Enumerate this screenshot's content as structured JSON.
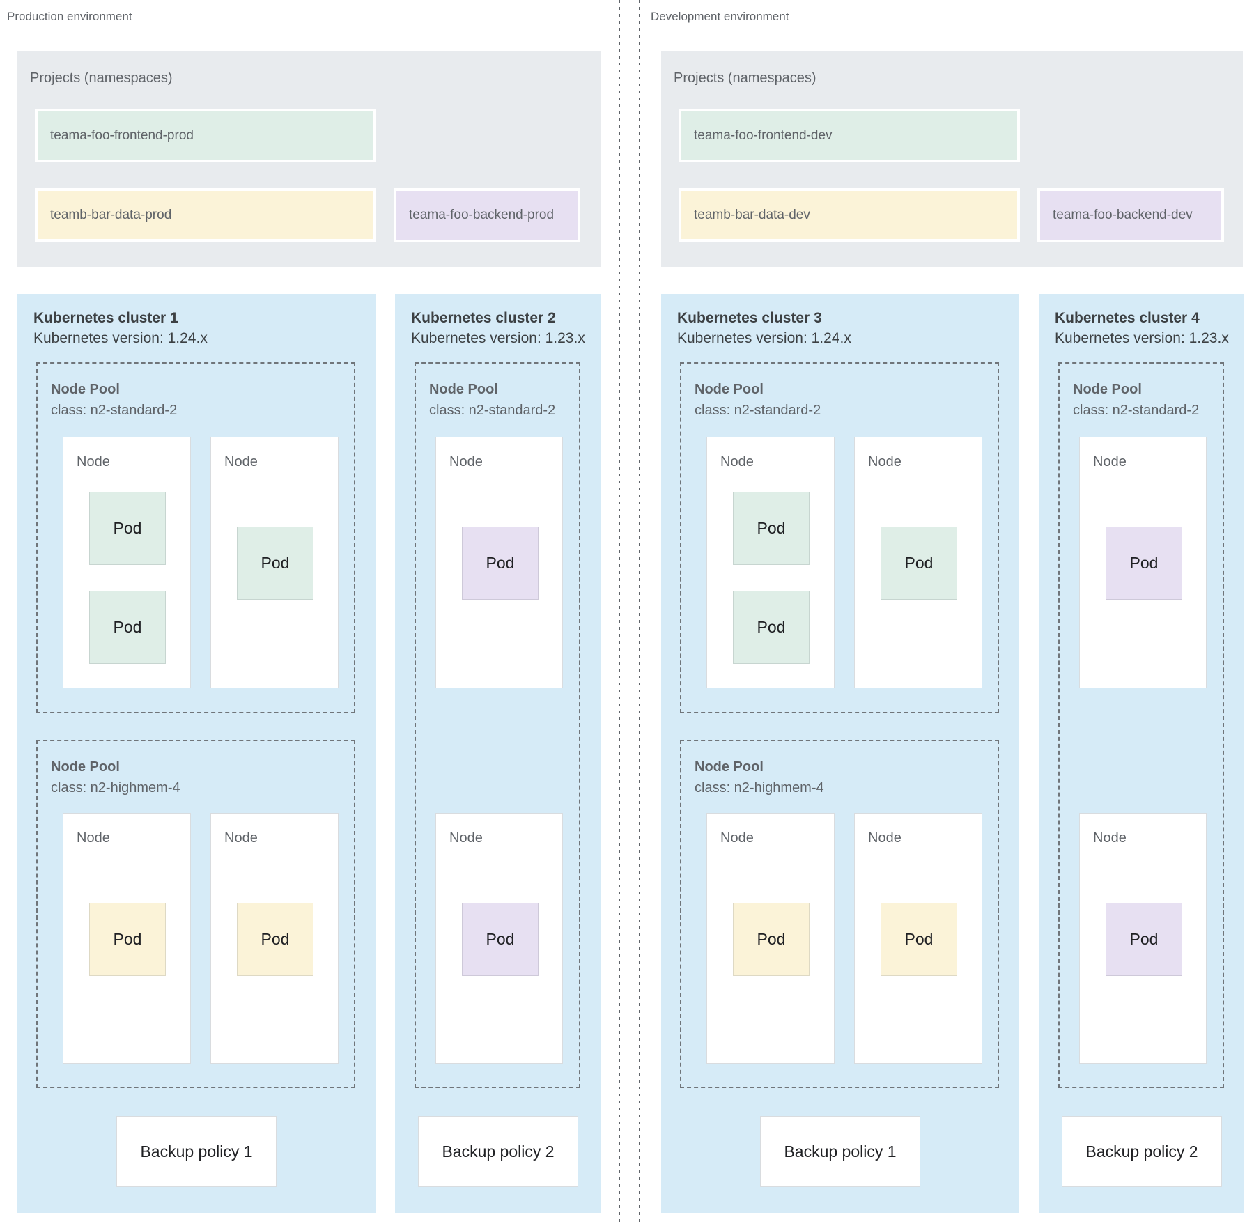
{
  "colors": {
    "page_bg": "#ffffff",
    "projects_panel_bg": "#e8ebee",
    "cluster_bg": "#d6ebf7",
    "namespace_green": "#dfeee7",
    "namespace_yellow": "#fbf3d8",
    "namespace_purple": "#e7e0f2",
    "dashed_border": "#70757a",
    "label_gray": "#5f6368",
    "title_dark": "#3c4043"
  },
  "environments": [
    {
      "label": "Production environment",
      "projects_panel": {
        "title": "Projects (namespaces)",
        "namespaces": [
          {
            "name": "teama-foo-frontend-prod",
            "color": "green"
          },
          {
            "name": "teamb-bar-data-prod",
            "color": "yellow"
          },
          {
            "name": "teama-foo-backend-prod",
            "color": "purple"
          }
        ]
      },
      "clusters": [
        {
          "title": "Kubernetes cluster 1",
          "version": "Kubernetes version: 1.24.x",
          "width": "wide",
          "node_pools": [
            {
              "label": "Node Pool",
              "class": "class: n2-standard-2",
              "nodes": [
                {
                  "label": "Node",
                  "pods": [
                    {
                      "label": "Pod",
                      "color": "green"
                    },
                    {
                      "label": "Pod",
                      "color": "green"
                    }
                  ]
                },
                {
                  "label": "Node",
                  "pods": [
                    {
                      "label": "Pod",
                      "color": "green"
                    }
                  ]
                }
              ]
            },
            {
              "label": "Node Pool",
              "class": "class: n2-highmem-4",
              "nodes": [
                {
                  "label": "Node",
                  "pods": [
                    {
                      "label": "Pod",
                      "color": "yellow"
                    }
                  ]
                },
                {
                  "label": "Node",
                  "pods": [
                    {
                      "label": "Pod",
                      "color": "yellow"
                    }
                  ]
                }
              ]
            }
          ],
          "backup_policy": "Backup policy 1"
        },
        {
          "title": "Kubernetes cluster 2",
          "version": "Kubernetes version: 1.23.x",
          "width": "narrow",
          "node_pools": [
            {
              "label": "Node Pool",
              "class": "class: n2-standard-2",
              "nodes": [
                {
                  "label": "Node",
                  "pods": [
                    {
                      "label": "Pod",
                      "color": "purple"
                    }
                  ]
                },
                {
                  "label": "Node",
                  "pods": [
                    {
                      "label": "Pod",
                      "color": "purple"
                    }
                  ]
                }
              ]
            }
          ],
          "backup_policy": "Backup policy 2"
        }
      ]
    },
    {
      "label": "Development environment",
      "projects_panel": {
        "title": "Projects (namespaces)",
        "namespaces": [
          {
            "name": "teama-foo-frontend-dev",
            "color": "green"
          },
          {
            "name": "teamb-bar-data-dev",
            "color": "yellow"
          },
          {
            "name": "teama-foo-backend-dev",
            "color": "purple"
          }
        ]
      },
      "clusters": [
        {
          "title": "Kubernetes cluster 3",
          "version": "Kubernetes version: 1.24.x",
          "width": "wide",
          "node_pools": [
            {
              "label": "Node Pool",
              "class": "class: n2-standard-2",
              "nodes": [
                {
                  "label": "Node",
                  "pods": [
                    {
                      "label": "Pod",
                      "color": "green"
                    },
                    {
                      "label": "Pod",
                      "color": "green"
                    }
                  ]
                },
                {
                  "label": "Node",
                  "pods": [
                    {
                      "label": "Pod",
                      "color": "green"
                    }
                  ]
                }
              ]
            },
            {
              "label": "Node Pool",
              "class": "class: n2-highmem-4",
              "nodes": [
                {
                  "label": "Node",
                  "pods": [
                    {
                      "label": "Pod",
                      "color": "yellow"
                    }
                  ]
                },
                {
                  "label": "Node",
                  "pods": [
                    {
                      "label": "Pod",
                      "color": "yellow"
                    }
                  ]
                }
              ]
            }
          ],
          "backup_policy": "Backup policy 1"
        },
        {
          "title": "Kubernetes cluster 4",
          "version": "Kubernetes version: 1.23.x",
          "width": "narrow",
          "node_pools": [
            {
              "label": "Node Pool",
              "class": "class: n2-standard-2",
              "nodes": [
                {
                  "label": "Node",
                  "pods": [
                    {
                      "label": "Pod",
                      "color": "purple"
                    }
                  ]
                },
                {
                  "label": "Node",
                  "pods": [
                    {
                      "label": "Pod",
                      "color": "purple"
                    }
                  ]
                }
              ]
            }
          ],
          "backup_policy": "Backup policy 2"
        }
      ]
    }
  ]
}
